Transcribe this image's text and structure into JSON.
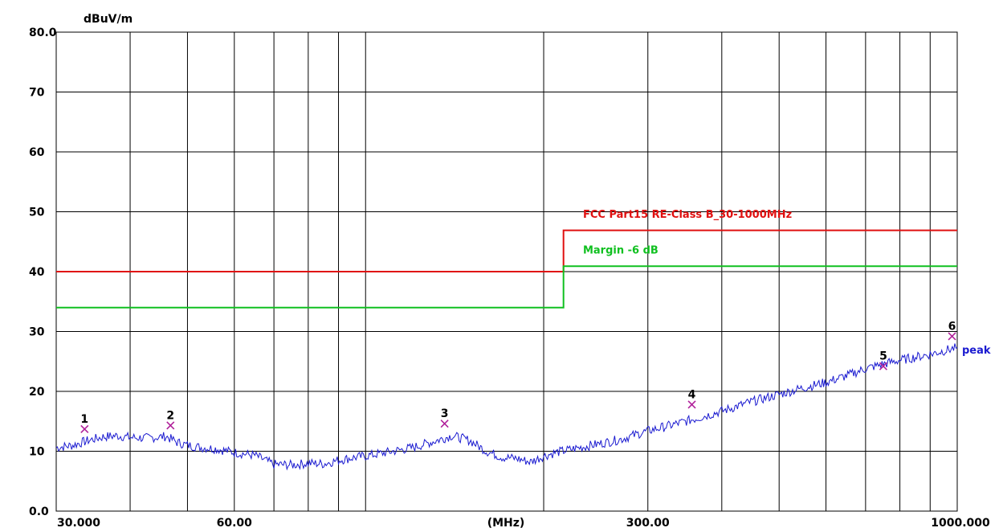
{
  "chart_data": {
    "type": "line",
    "ylabel": "dBuV/m",
    "xlabel": "(MHz)",
    "x_scale": "log",
    "xlim": [
      30,
      1000
    ],
    "ylim": [
      0,
      80
    ],
    "grid": true,
    "y_ticks": [
      {
        "value": 0,
        "label": "0.0"
      },
      {
        "value": 10,
        "label": "10"
      },
      {
        "value": 20,
        "label": "20"
      },
      {
        "value": 30,
        "label": "30"
      },
      {
        "value": 40,
        "label": "40"
      },
      {
        "value": 50,
        "label": "50"
      },
      {
        "value": 60,
        "label": "60"
      },
      {
        "value": 70,
        "label": "70"
      },
      {
        "value": 80,
        "label": "80.0"
      }
    ],
    "x_tick_labels": [
      {
        "value": 30,
        "label": "30.000"
      },
      {
        "value": 60,
        "label": "60.00"
      },
      {
        "value": 300,
        "label": "300.00"
      },
      {
        "value": 1000,
        "label": "1000.000"
      }
    ],
    "x_gridlines": [
      30,
      40,
      50,
      60,
      70,
      80,
      90,
      100,
      200,
      300,
      400,
      500,
      600,
      700,
      800,
      900,
      1000
    ],
    "series": [
      {
        "name": "FCC Part15 RE-Class B_30-1000MHz",
        "color": "#e01010",
        "x": [
          30,
          216,
          216,
          1000
        ],
        "y": [
          40,
          40,
          46.9,
          46.9
        ]
      },
      {
        "name": "Margin -6 dB",
        "color": "#10c020",
        "x": [
          30,
          216,
          216,
          1000
        ],
        "y": [
          34,
          34,
          40.9,
          40.9
        ]
      },
      {
        "name": "peak",
        "color": "#1a1ad0",
        "x": [
          30,
          32,
          34,
          36,
          38,
          40,
          43,
          46,
          48,
          50,
          53,
          56,
          60,
          65,
          70,
          75,
          80,
          85,
          90,
          95,
          100,
          110,
          120,
          130,
          140,
          150,
          160,
          170,
          180,
          190,
          200,
          210,
          230,
          250,
          270,
          300,
          330,
          360,
          400,
          450,
          500,
          550,
          600,
          650,
          700,
          760,
          800,
          850,
          900,
          950,
          1000
        ],
        "y": [
          10.6,
          11.0,
          11.8,
          12.4,
          12.6,
          12.3,
          12.2,
          12.5,
          11.5,
          11.0,
          10.6,
          10.4,
          9.8,
          9.3,
          7.8,
          7.7,
          8.0,
          7.9,
          8.5,
          8.9,
          9.2,
          9.9,
          10.6,
          11.6,
          12.6,
          11.8,
          10.0,
          9.0,
          8.8,
          8.2,
          9.2,
          9.8,
          10.6,
          11.3,
          12.0,
          13.4,
          14.4,
          15.4,
          16.7,
          18.3,
          19.5,
          20.6,
          21.5,
          22.6,
          23.8,
          24.7,
          25.2,
          25.7,
          26.2,
          26.8,
          27.3
        ]
      }
    ],
    "markers": [
      {
        "label": "1",
        "x": 33.5,
        "y": 13.7
      },
      {
        "label": "2",
        "x": 46.8,
        "y": 14.3
      },
      {
        "label": "3",
        "x": 136,
        "y": 14.6
      },
      {
        "label": "4",
        "x": 356,
        "y": 17.8
      },
      {
        "label": "5",
        "x": 750,
        "y": 24.2
      },
      {
        "label": "6",
        "x": 980,
        "y": 29.2
      }
    ],
    "annotations": [
      {
        "text": "FCC Part15 RE-Class B_30-1000MHz",
        "x": 245,
        "y": 49,
        "color": "#e01010"
      },
      {
        "text": "Margin -6 dB",
        "x": 245,
        "y": 43,
        "color": "#10c020"
      },
      {
        "text": "peak",
        "x": 1000,
        "y": 26.3,
        "color": "#1a1ad0"
      }
    ]
  }
}
